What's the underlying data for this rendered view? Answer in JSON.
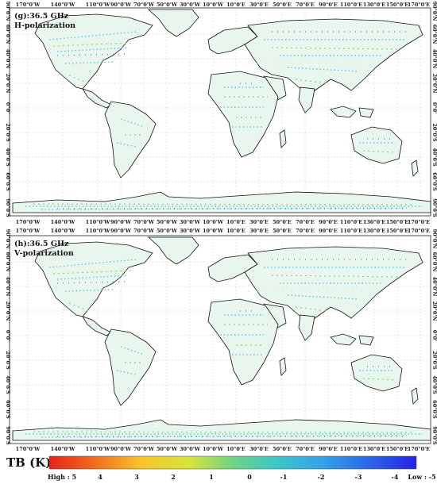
{
  "panels": [
    {
      "title_line1": "(g):36.5 GHz",
      "title_line2": "H-polarization"
    },
    {
      "title_line1": "(h):36.5 GHz",
      "title_line2": "V-polarization"
    }
  ],
  "lon_labels": [
    "170°0'W",
    "140°0'W",
    "110°0'W",
    "90°0'W",
    "70°0'W",
    "50°0'W",
    "30°0'W",
    "10°0'W",
    "10°0'E",
    "30°0'E",
    "50°0'E",
    "70°0'E",
    "90°0'E",
    "110°0'E",
    "130°0'E",
    "150°0'E",
    "170°0'E"
  ],
  "lat_labels": [
    "90°0'N",
    "60°0'N",
    "40°0'N",
    "20°0'N",
    "0°0'",
    "20°0'S",
    "40°0'S",
    "60°0'S",
    "90°0'S"
  ],
  "colorbar": {
    "title": "TB (K)",
    "labels": [
      "High : 5",
      "4",
      "3",
      "2",
      "1",
      "0",
      "-1",
      "-2",
      "-3",
      "-4",
      "Low : -5"
    ],
    "min": -5,
    "max": 5,
    "colors": [
      "#e8231c",
      "#f06a1e",
      "#f7a825",
      "#f6e23a",
      "#b8e04a",
      "#5fd08a",
      "#3cc7c8",
      "#33a8e6",
      "#2d7ee8",
      "#2a4fe8",
      "#2323e6"
    ]
  }
}
